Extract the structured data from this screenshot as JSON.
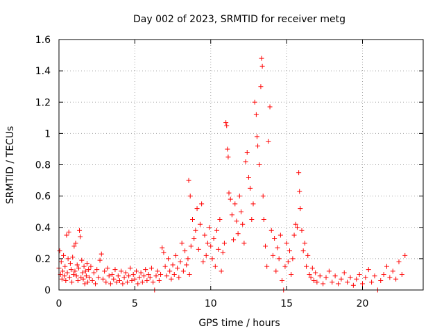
{
  "chart_data": {
    "type": "scatter",
    "title": "Day 002 of 2023, SRMTID for receiver metg",
    "xlabel": "GPS time / hours",
    "ylabel": "SRMTID / TECUs",
    "xlim": [
      0,
      24
    ],
    "ylim": [
      0,
      1.6
    ],
    "xticks": [
      0,
      5,
      10,
      15,
      20
    ],
    "xtick_labels": [
      "0",
      "5",
      "10",
      "15",
      "20"
    ],
    "yticks": [
      0,
      0.2,
      0.4,
      0.6,
      0.8,
      1,
      1.2,
      1.4,
      1.6
    ],
    "ytick_labels": [
      "0",
      "0.2",
      "0.4",
      "0.6",
      "0.8",
      "1",
      "1.2",
      "1.4",
      "1.6"
    ],
    "grid": true,
    "marker": "+",
    "color": "#ff0000",
    "series": [
      {
        "name": "SRMTID",
        "points": [
          [
            0.0,
            0.14
          ],
          [
            0.05,
            0.25
          ],
          [
            0.1,
            0.1
          ],
          [
            0.15,
            0.18
          ],
          [
            0.2,
            0.07
          ],
          [
            0.25,
            0.12
          ],
          [
            0.3,
            0.22
          ],
          [
            0.35,
            0.09
          ],
          [
            0.4,
            0.15
          ],
          [
            0.45,
            0.06
          ],
          [
            0.5,
            0.35
          ],
          [
            0.55,
            0.11
          ],
          [
            0.6,
            0.2
          ],
          [
            0.65,
            0.37
          ],
          [
            0.7,
            0.08
          ],
          [
            0.75,
            0.17
          ],
          [
            0.8,
            0.13
          ],
          [
            0.85,
            0.05
          ],
          [
            0.9,
            0.21
          ],
          [
            0.95,
            0.1
          ],
          [
            1.0,
            0.28
          ],
          [
            1.05,
            0.12
          ],
          [
            1.1,
            0.3
          ],
          [
            1.15,
            0.09
          ],
          [
            1.2,
            0.16
          ],
          [
            1.25,
            0.06
          ],
          [
            1.3,
            0.14
          ],
          [
            1.35,
            0.38
          ],
          [
            1.4,
            0.34
          ],
          [
            1.45,
            0.08
          ],
          [
            1.5,
            0.19
          ],
          [
            1.55,
            0.11
          ],
          [
            1.6,
            0.07
          ],
          [
            1.65,
            0.15
          ],
          [
            1.7,
            0.04
          ],
          [
            1.75,
            0.12
          ],
          [
            1.8,
            0.09
          ],
          [
            1.85,
            0.17
          ],
          [
            1.9,
            0.05
          ],
          [
            1.95,
            0.13
          ],
          [
            2.0,
            0.08
          ],
          [
            2.1,
            0.15
          ],
          [
            2.2,
            0.06
          ],
          [
            2.3,
            0.11
          ],
          [
            2.4,
            0.04
          ],
          [
            2.5,
            0.13
          ],
          [
            2.6,
            0.08
          ],
          [
            2.7,
            0.19
          ],
          [
            2.8,
            0.23
          ],
          [
            2.9,
            0.07
          ],
          [
            3.0,
            0.12
          ],
          [
            3.1,
            0.05
          ],
          [
            3.2,
            0.14
          ],
          [
            3.3,
            0.09
          ],
          [
            3.4,
            0.04
          ],
          [
            3.5,
            0.1
          ],
          [
            3.6,
            0.07
          ],
          [
            3.7,
            0.13
          ],
          [
            3.8,
            0.05
          ],
          [
            3.9,
            0.09
          ],
          [
            4.0,
            0.06
          ],
          [
            4.1,
            0.12
          ],
          [
            4.2,
            0.04
          ],
          [
            4.3,
            0.08
          ],
          [
            4.4,
            0.11
          ],
          [
            4.5,
            0.05
          ],
          [
            4.6,
            0.09
          ],
          [
            4.7,
            0.14
          ],
          [
            4.8,
            0.06
          ],
          [
            4.9,
            0.1
          ],
          [
            5.0,
            0.07
          ],
          [
            5.1,
            0.12
          ],
          [
            5.2,
            0.04
          ],
          [
            5.3,
            0.08
          ],
          [
            5.4,
            0.11
          ],
          [
            5.5,
            0.05
          ],
          [
            5.6,
            0.09
          ],
          [
            5.7,
            0.13
          ],
          [
            5.8,
            0.06
          ],
          [
            5.9,
            0.1
          ],
          [
            6.0,
            0.08
          ],
          [
            6.1,
            0.14
          ],
          [
            6.2,
            0.05
          ],
          [
            6.3,
            0.0
          ],
          [
            6.4,
            0.09
          ],
          [
            6.5,
            0.12
          ],
          [
            6.6,
            0.06
          ],
          [
            6.7,
            0.1
          ],
          [
            6.8,
            0.27
          ],
          [
            6.9,
            0.24
          ],
          [
            7.0,
            0.15
          ],
          [
            7.1,
            0.09
          ],
          [
            7.2,
            0.2
          ],
          [
            7.3,
            0.12
          ],
          [
            7.4,
            0.07
          ],
          [
            7.5,
            0.16
          ],
          [
            7.6,
            0.1
          ],
          [
            7.7,
            0.22
          ],
          [
            7.8,
            0.14
          ],
          [
            7.9,
            0.08
          ],
          [
            8.0,
            0.18
          ],
          [
            8.1,
            0.3
          ],
          [
            8.2,
            0.12
          ],
          [
            8.3,
            0.25
          ],
          [
            8.4,
            0.16
          ],
          [
            8.5,
            0.2
          ],
          [
            8.55,
            0.7
          ],
          [
            8.6,
            0.1
          ],
          [
            8.65,
            0.6
          ],
          [
            8.7,
            0.28
          ],
          [
            8.8,
            0.45
          ],
          [
            8.9,
            0.33
          ],
          [
            9.0,
            0.38
          ],
          [
            9.1,
            0.52
          ],
          [
            9.2,
            0.26
          ],
          [
            9.3,
            0.42
          ],
          [
            9.4,
            0.55
          ],
          [
            9.5,
            0.18
          ],
          [
            9.6,
            0.35
          ],
          [
            9.7,
            0.22
          ],
          [
            9.8,
            0.3
          ],
          [
            9.9,
            0.4
          ],
          [
            10.0,
            0.28
          ],
          [
            10.1,
            0.2
          ],
          [
            10.2,
            0.33
          ],
          [
            10.3,
            0.15
          ],
          [
            10.4,
            0.38
          ],
          [
            10.5,
            0.26
          ],
          [
            10.6,
            0.45
          ],
          [
            10.7,
            0.12
          ],
          [
            10.8,
            0.24
          ],
          [
            10.9,
            0.3
          ],
          [
            11.0,
            1.07
          ],
          [
            11.05,
            1.05
          ],
          [
            11.1,
            0.9
          ],
          [
            11.15,
            0.85
          ],
          [
            11.2,
            0.62
          ],
          [
            11.3,
            0.58
          ],
          [
            11.4,
            0.48
          ],
          [
            11.5,
            0.32
          ],
          [
            11.6,
            0.55
          ],
          [
            11.7,
            0.44
          ],
          [
            11.8,
            0.36
          ],
          [
            11.9,
            0.6
          ],
          [
            12.0,
            0.5
          ],
          [
            12.1,
            0.42
          ],
          [
            12.2,
            0.3
          ],
          [
            12.3,
            0.82
          ],
          [
            12.4,
            0.88
          ],
          [
            12.5,
            0.72
          ],
          [
            12.6,
            0.65
          ],
          [
            12.7,
            0.45
          ],
          [
            12.8,
            0.55
          ],
          [
            12.9,
            1.2
          ],
          [
            13.0,
            1.12
          ],
          [
            13.05,
            0.98
          ],
          [
            13.1,
            0.92
          ],
          [
            13.2,
            0.8
          ],
          [
            13.3,
            1.3
          ],
          [
            13.35,
            1.48
          ],
          [
            13.4,
            1.43
          ],
          [
            13.45,
            0.6
          ],
          [
            13.5,
            0.45
          ],
          [
            13.6,
            0.28
          ],
          [
            13.7,
            0.15
          ],
          [
            13.8,
            0.95
          ],
          [
            13.9,
            1.17
          ],
          [
            14.0,
            0.38
          ],
          [
            14.1,
            0.22
          ],
          [
            14.2,
            0.33
          ],
          [
            14.3,
            0.12
          ],
          [
            14.4,
            0.27
          ],
          [
            14.5,
            0.2
          ],
          [
            14.6,
            0.35
          ],
          [
            14.7,
            0.06
          ],
          [
            14.8,
            0.0
          ],
          [
            14.9,
            0.15
          ],
          [
            15.0,
            0.3
          ],
          [
            15.1,
            0.18
          ],
          [
            15.2,
            0.25
          ],
          [
            15.3,
            0.1
          ],
          [
            15.4,
            0.2
          ],
          [
            15.5,
            0.35
          ],
          [
            15.6,
            0.42
          ],
          [
            15.7,
            0.4
          ],
          [
            15.8,
            0.75
          ],
          [
            15.85,
            0.63
          ],
          [
            15.9,
            0.52
          ],
          [
            16.0,
            0.38
          ],
          [
            16.1,
            0.25
          ],
          [
            16.2,
            0.3
          ],
          [
            16.3,
            0.15
          ],
          [
            16.4,
            0.22
          ],
          [
            16.5,
            0.1
          ],
          [
            16.6,
            0.08
          ],
          [
            16.7,
            0.14
          ],
          [
            16.8,
            0.06
          ],
          [
            16.9,
            0.11
          ],
          [
            17.0,
            0.05
          ],
          [
            17.2,
            0.09
          ],
          [
            17.4,
            0.04
          ],
          [
            17.6,
            0.08
          ],
          [
            17.8,
            0.12
          ],
          [
            18.0,
            0.05
          ],
          [
            18.2,
            0.09
          ],
          [
            18.4,
            0.04
          ],
          [
            18.6,
            0.07
          ],
          [
            18.8,
            0.11
          ],
          [
            19.0,
            0.05
          ],
          [
            19.2,
            0.08
          ],
          [
            19.4,
            0.03
          ],
          [
            19.6,
            0.07
          ],
          [
            19.8,
            0.1
          ],
          [
            20.0,
            0.04
          ],
          [
            20.2,
            0.08
          ],
          [
            20.4,
            0.13
          ],
          [
            20.6,
            0.05
          ],
          [
            20.8,
            0.09
          ],
          [
            21.0,
            0.0
          ],
          [
            21.2,
            0.06
          ],
          [
            21.4,
            0.1
          ],
          [
            21.6,
            0.15
          ],
          [
            21.8,
            0.08
          ],
          [
            22.0,
            0.12
          ],
          [
            22.2,
            0.07
          ],
          [
            22.4,
            0.18
          ],
          [
            22.6,
            0.1
          ],
          [
            22.8,
            0.22
          ]
        ]
      }
    ]
  }
}
